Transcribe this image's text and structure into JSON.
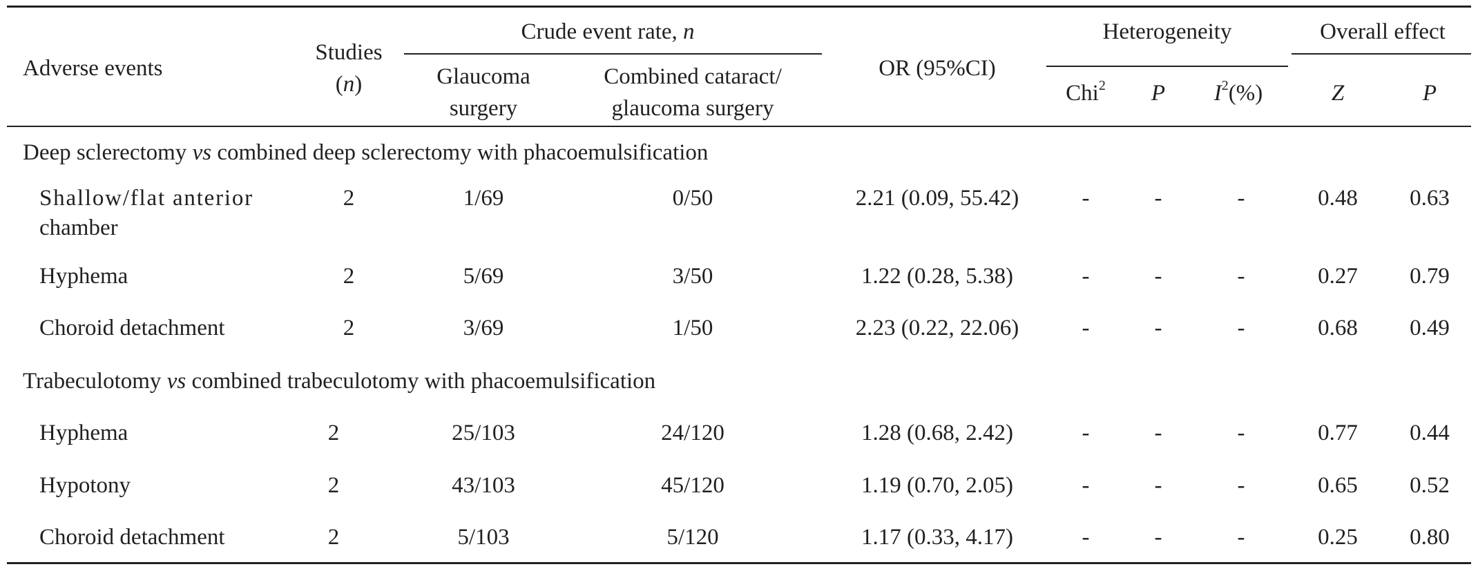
{
  "header": {
    "adverse_events": "Adverse events",
    "studies_line1": "Studies",
    "studies_line2": "n",
    "crude_rate": "Crude event rate, ",
    "crude_rate_n": "n",
    "glaucoma_line1": "Glaucoma",
    "glaucoma_line2": "surgery",
    "combined_line1": "Combined cataract/",
    "combined_line2": "glaucoma surgery",
    "or_ci": "OR (95%CI)",
    "heterogeneity": "Heterogeneity",
    "chi": "Chi",
    "chi_sup": "2",
    "p": "P",
    "i2_i": "I",
    "i2_sup": "2",
    "i2_pct": "(%)",
    "overall_effect": "Overall effect",
    "z": "Z",
    "p2": "P"
  },
  "sections": [
    {
      "title_pre": "Deep sclerectomy ",
      "title_vs": "vs",
      "title_post": " combined deep sclerectomy with phacoemulsification",
      "rows": [
        {
          "event": "Shallow/flat anterior",
          "event_line2": "chamber",
          "studies": "2",
          "glaucoma": "1/69",
          "combined": "0/50",
          "or": "2.21 (0.09, 55.42)",
          "chi2": "-",
          "p_het": "-",
          "i2": "-",
          "z": "0.48",
          "p": "0.63"
        },
        {
          "event": "Hyphema",
          "studies": "2",
          "glaucoma": "5/69",
          "combined": "3/50",
          "or": "1.22 (0.28, 5.38)",
          "chi2": "-",
          "p_het": "-",
          "i2": "-",
          "z": "0.27",
          "p": "0.79"
        },
        {
          "event": "Choroid detachment",
          "studies": "2",
          "glaucoma": "3/69",
          "combined": "1/50",
          "or": "2.23 (0.22, 22.06)",
          "chi2": "-",
          "p_het": "-",
          "i2": "-",
          "z": "0.68",
          "p": "0.49"
        }
      ]
    },
    {
      "title_pre": "Trabeculotomy ",
      "title_vs": "vs",
      "title_post": " combined trabeculotomy with phacoemulsification",
      "rows": [
        {
          "event": "Hyphema",
          "studies": "2",
          "glaucoma": "25/103",
          "combined": "24/120",
          "or": "1.28 (0.68, 2.42)",
          "chi2": "-",
          "p_het": "-",
          "i2": "-",
          "z": "0.77",
          "p": "0.44"
        },
        {
          "event": "Hypotony",
          "studies": "2",
          "glaucoma": "43/103",
          "combined": "45/120",
          "or": "1.19 (0.70, 2.05)",
          "chi2": "-",
          "p_het": "-",
          "i2": "-",
          "z": "0.65",
          "p": "0.52"
        },
        {
          "event": "Choroid detachment",
          "studies": "2",
          "glaucoma": "5/103",
          "combined": "5/120",
          "or": "1.17 (0.33, 4.17)",
          "chi2": "-",
          "p_het": "-",
          "i2": "-",
          "z": "0.25",
          "p": "0.80"
        }
      ]
    }
  ]
}
